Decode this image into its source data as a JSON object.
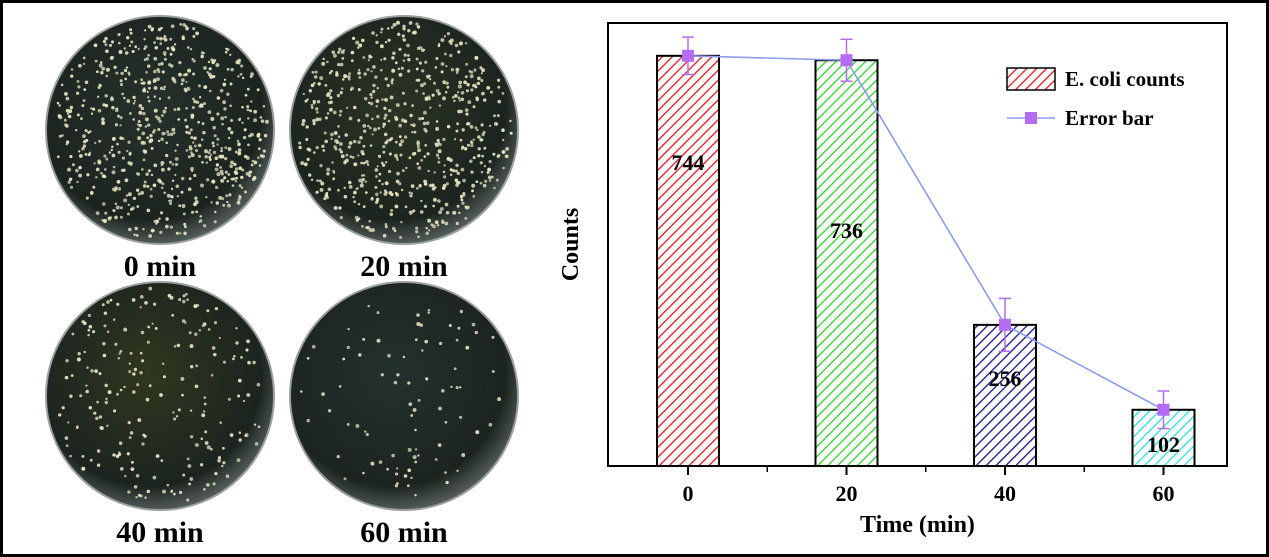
{
  "plates": [
    {
      "label": "0 min",
      "colonies": 744,
      "tint": "#26312c"
    },
    {
      "label": "20 min",
      "colonies": 736,
      "tint": "#2b3423"
    },
    {
      "label": "40 min",
      "colonies": 256,
      "tint": "#30371f"
    },
    {
      "label": "60 min",
      "colonies": 102,
      "tint": "#23312d"
    }
  ],
  "chart_data": {
    "type": "bar",
    "categories": [
      "0",
      "20",
      "40",
      "60"
    ],
    "values": [
      744,
      736,
      256,
      102
    ],
    "value_labels": [
      "744",
      "736",
      "256",
      "102"
    ],
    "error_bars": [
      34,
      38,
      48,
      34
    ],
    "xlabel": "Time (min)",
    "ylabel": "Counts",
    "ylim": [
      0,
      820
    ],
    "grid": false,
    "legend_position": "top-right",
    "legend": [
      {
        "label": "E. coli counts",
        "marker": "hatched-bar"
      },
      {
        "label": "Error bar",
        "marker": "line-square"
      }
    ],
    "bar_colors": [
      "#e8141e",
      "#2ed628",
      "#14148e",
      "#2ae2e2"
    ],
    "line_color": "#8c9cf2",
    "marker_color": "#b46cf2"
  }
}
